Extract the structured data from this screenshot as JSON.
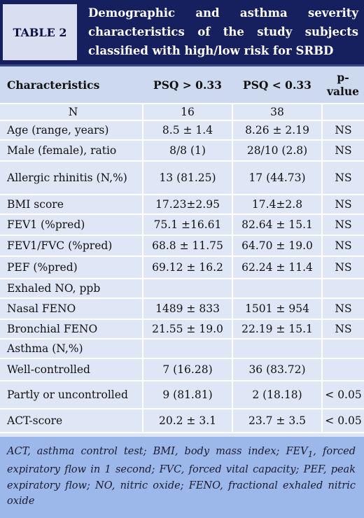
{
  "table_label": "TABLE 2",
  "title": "Demographic and asthma severity characteristics of the study subjects classified with high/low risk for SRBD",
  "columns": [
    "Characteristics",
    "PSQ > 0.33",
    "PSQ < 0.33",
    "p-value"
  ],
  "rows": [
    {
      "label": "N",
      "a": "16",
      "b": "38",
      "p": ""
    },
    {
      "label": "Age (range, years)",
      "a": "8.5 ± 1.4",
      "b": "8.26 ± 2.19",
      "p": "NS"
    },
    {
      "label": "Male (female), ratio",
      "a": "8/8 (1)",
      "b": "28/10 (2.8)",
      "p": "NS"
    },
    {
      "label": "Allergic rhinitis (N,%)",
      "a": "13 (81.25)",
      "b": "17 (44.73)",
      "p": "NS"
    },
    {
      "label": "BMI score",
      "a": "17.23±2.95",
      "b": "17.4±2.8",
      "p": "NS"
    },
    {
      "label": "FEV1 (%pred)",
      "a": "75.1 ±16.61",
      "b": "82.64 ± 15.1",
      "p": "NS"
    },
    {
      "label": "FEV1/FVC (%pred)",
      "a": "68.8 ± 11.75",
      "b": "64.70 ± 19.0",
      "p": "NS"
    },
    {
      "label": "PEF (%pred)",
      "a": "69.12 ± 16.2",
      "b": "62.24 ± 11.4",
      "p": "NS"
    },
    {
      "label": "Exhaled NO, ppb",
      "a": "",
      "b": "",
      "p": ""
    },
    {
      "label": "Nasal FENO",
      "a": "1489 ± 833",
      "b": "1501 ± 954",
      "p": "NS"
    },
    {
      "label": "Bronchial FENO",
      "a": "21.55 ± 19.0",
      "b": "22.19 ± 15.1",
      "p": "NS"
    },
    {
      "label": "Asthma (N,%)",
      "a": "",
      "b": "",
      "p": ""
    },
    {
      "label": "Well-controlled",
      "a": "7 (16.28)",
      "b": "36 (83.72)",
      "p": ""
    },
    {
      "label": "Partly or uncontrolled",
      "a": "9 (81.81)",
      "b": "2 (18.18)",
      "p": "< 0.05"
    },
    {
      "label": "ACT-score",
      "a": "20.2 ± 3.1",
      "b": "23.7 ± 3.5",
      "p": "< 0.05"
    }
  ],
  "footnote": {
    "text_a": "ACT, asthma control test; BMI, body mass index; FEV",
    "sub": "1",
    "text_b": ", forced expiratory flow in 1 second; FVC, forced vital capacity; PEF, peak expiratory flow; NO, nitric oxide; FENO, fractional exhaled nitric oxide"
  }
}
